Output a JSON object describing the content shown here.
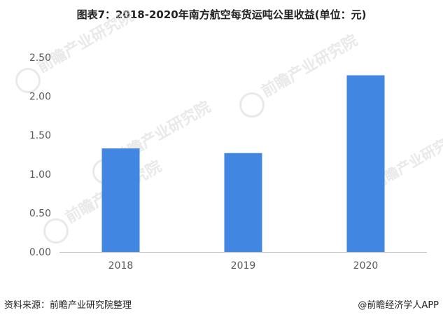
{
  "title": "图表7：2018-2020年南方航空每货运吨公里收益(单位：元)",
  "chart_data": {
    "type": "bar",
    "title": "图表7：2018-2020年南方航空每货运吨公里收益(单位：元)",
    "categories": [
      "2018",
      "2019",
      "2020"
    ],
    "values": [
      1.33,
      1.27,
      2.27
    ],
    "ylim": [
      0,
      2.5
    ],
    "yticks": [
      "0.00",
      "0.50",
      "1.00",
      "1.50",
      "2.00",
      "2.50"
    ],
    "xlabel": "",
    "ylabel": "",
    "grid": false,
    "bar_color": "#4186E0",
    "legend": "none"
  },
  "watermark": {
    "text": "前瞻产业研究院"
  },
  "footer": {
    "source": "资料来源：前瞻产业研究院整理",
    "brand": "@前瞻经济学人APP"
  }
}
